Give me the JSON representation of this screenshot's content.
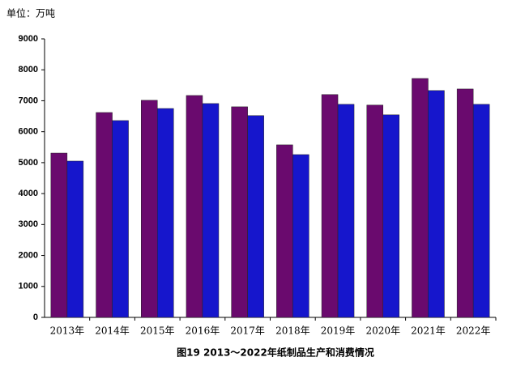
{
  "chart_data": {
    "type": "bar",
    "unit_label": "单位：万吨",
    "caption": "图19 2013～2022年纸制品生产和消费情况",
    "categories": [
      "2013年",
      "2014年",
      "2015年",
      "2016年",
      "2017年",
      "2018年",
      "2019年",
      "2020年",
      "2021年",
      "2022年"
    ],
    "series": [
      {
        "color": "#6a0a6e",
        "values": [
          5310,
          6620,
          7015,
          7170,
          6805,
          5575,
          7200,
          6860,
          7720,
          7380
        ]
      },
      {
        "color": "#1616cc",
        "values": [
          5050,
          6360,
          6750,
          6910,
          6520,
          5260,
          6885,
          6545,
          7330,
          6885
        ]
      }
    ],
    "ylim": [
      0,
      9000
    ],
    "yticks": [
      0,
      1000,
      2000,
      3000,
      4000,
      5000,
      6000,
      7000,
      8000,
      9000
    ],
    "grid": false
  }
}
